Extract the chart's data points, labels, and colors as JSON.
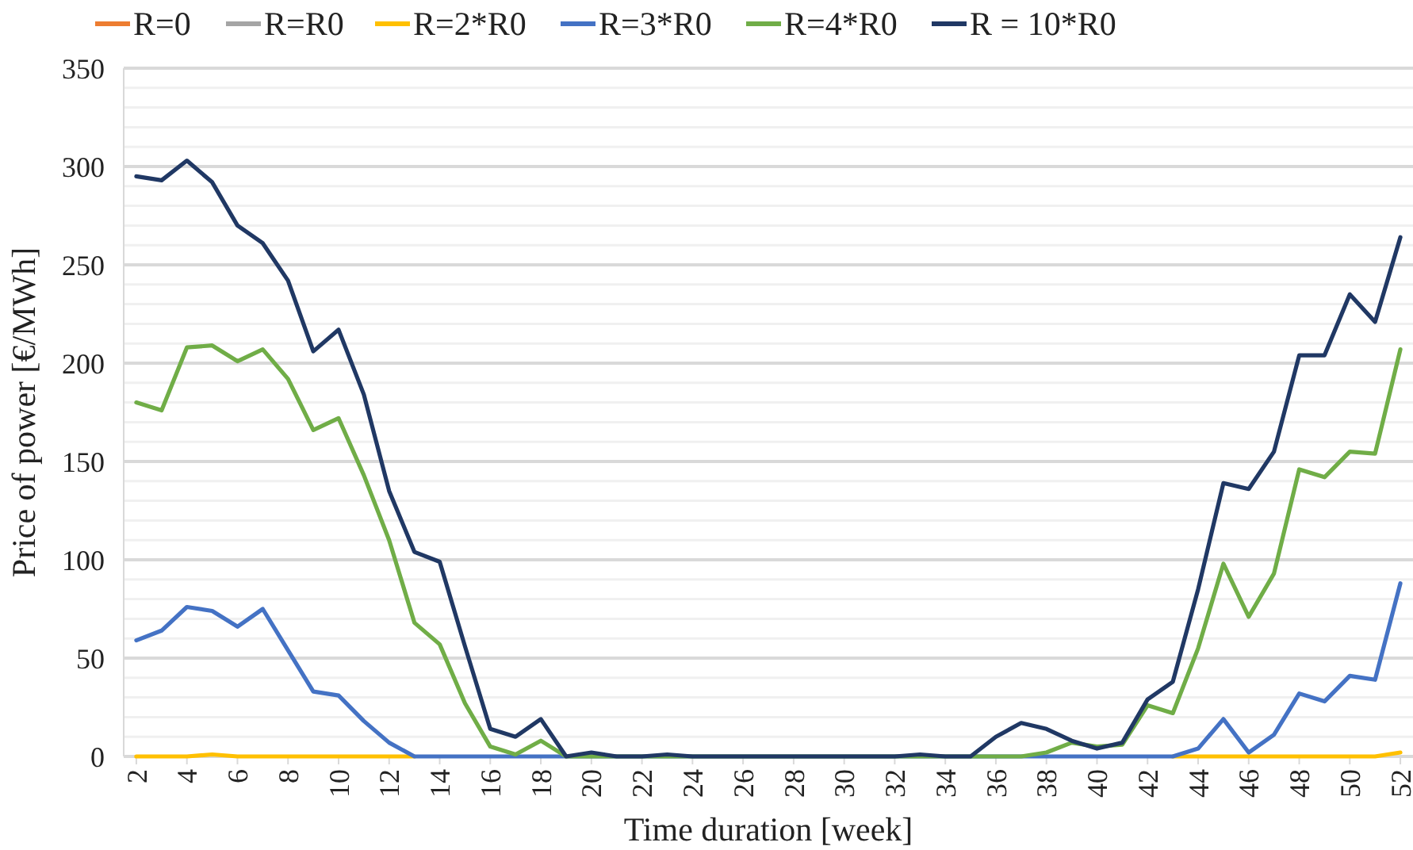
{
  "chart_data": {
    "type": "line",
    "xlabel": "Time duration [week]",
    "ylabel": "Price of power [€/MWh]",
    "x": [
      2,
      3,
      4,
      5,
      6,
      7,
      8,
      9,
      10,
      11,
      12,
      13,
      14,
      15,
      16,
      17,
      18,
      19,
      20,
      21,
      22,
      23,
      24,
      25,
      26,
      27,
      28,
      29,
      30,
      31,
      32,
      33,
      34,
      35,
      36,
      37,
      38,
      39,
      40,
      41,
      42,
      43,
      44,
      45,
      46,
      47,
      48,
      49,
      50,
      51,
      52
    ],
    "xlim": [
      1.5,
      52.5
    ],
    "xticks": [
      2,
      4,
      6,
      8,
      10,
      12,
      14,
      16,
      18,
      20,
      22,
      24,
      26,
      28,
      30,
      32,
      34,
      36,
      38,
      40,
      42,
      44,
      46,
      48,
      50,
      52
    ],
    "ylim": [
      0,
      350
    ],
    "yticks": [
      0,
      {
        "value": 10,
        "label": null
      },
      {
        "value": 20,
        "label": null
      },
      {
        "value": 30,
        "label": null
      },
      {
        "value": 40,
        "label": null
      },
      50,
      {
        "value": 60,
        "label": null
      },
      {
        "value": 70,
        "label": null
      },
      {
        "value": 80,
        "label": null
      },
      {
        "value": 90,
        "label": null
      },
      100,
      {
        "value": 110,
        "label": null
      },
      {
        "value": 120,
        "label": null
      },
      {
        "value": 130,
        "label": null
      },
      {
        "value": 140,
        "label": null
      },
      150,
      {
        "value": 160,
        "label": null
      },
      {
        "value": 170,
        "label": null
      },
      {
        "value": 180,
        "label": null
      },
      {
        "value": 190,
        "label": null
      },
      200,
      {
        "value": 210,
        "label": null
      },
      {
        "value": 220,
        "label": null
      },
      {
        "value": 230,
        "label": null
      },
      {
        "value": 240,
        "label": null
      },
      250,
      {
        "value": 260,
        "label": null
      },
      {
        "value": 270,
        "label": null
      },
      {
        "value": 280,
        "label": null
      },
      {
        "value": 290,
        "label": null
      },
      300,
      {
        "value": 310,
        "label": null
      },
      {
        "value": 320,
        "label": null
      },
      {
        "value": 330,
        "label": null
      },
      {
        "value": 340,
        "label": null
      },
      350
    ],
    "grid": "y",
    "legend": "top",
    "marker": "none",
    "line_style": "solid",
    "series": [
      {
        "name": "R=0",
        "color": "#ed7d31",
        "values": [
          null,
          null,
          null,
          null,
          null,
          null,
          null,
          null,
          null,
          null,
          null,
          null,
          null,
          null,
          null,
          null,
          null,
          null,
          null,
          null,
          null,
          null,
          null,
          null,
          null,
          null,
          null,
          null,
          null,
          null,
          null,
          null,
          null,
          null,
          null,
          null,
          null,
          null,
          null,
          null,
          null,
          null,
          null,
          null,
          null,
          null,
          null,
          null,
          null,
          null,
          null
        ]
      },
      {
        "name": "R=R0",
        "color": "#a5a5a5",
        "values": [
          null,
          null,
          null,
          null,
          null,
          null,
          null,
          null,
          null,
          null,
          null,
          null,
          null,
          null,
          null,
          null,
          null,
          null,
          null,
          null,
          null,
          null,
          null,
          null,
          null,
          null,
          null,
          null,
          null,
          null,
          null,
          null,
          null,
          null,
          null,
          null,
          null,
          null,
          null,
          null,
          null,
          null,
          null,
          null,
          null,
          null,
          null,
          null,
          null,
          null,
          null
        ]
      },
      {
        "name": "R=2*R0",
        "color": "#ffc000",
        "values": [
          0,
          0,
          0,
          1,
          0,
          0,
          0,
          0,
          0,
          0,
          0,
          0,
          null,
          null,
          null,
          null,
          null,
          null,
          null,
          null,
          null,
          null,
          null,
          null,
          null,
          null,
          null,
          null,
          null,
          null,
          null,
          null,
          null,
          null,
          null,
          null,
          null,
          null,
          null,
          null,
          null,
          0,
          0,
          0,
          0,
          0,
          0,
          0,
          0,
          0,
          2
        ]
      },
      {
        "name": "R=3*R0",
        "color": "#4472c4",
        "values": [
          59,
          64,
          76,
          74,
          66,
          75,
          54,
          33,
          31,
          18,
          7,
          0,
          0,
          0,
          0,
          0,
          0,
          0,
          0,
          0,
          0,
          0,
          0,
          0,
          0,
          0,
          0,
          0,
          0,
          0,
          0,
          0,
          0,
          0,
          0,
          0,
          0,
          0,
          0,
          0,
          0,
          0,
          4,
          19,
          2,
          11,
          32,
          28,
          41,
          39,
          88
        ]
      },
      {
        "name": "R=4*R0",
        "color": "#70ad47",
        "values": [
          180,
          176,
          208,
          209,
          201,
          207,
          192,
          166,
          172,
          143,
          110,
          68,
          57,
          27,
          5,
          1,
          8,
          0,
          0,
          0,
          0,
          0,
          0,
          0,
          0,
          0,
          0,
          0,
          0,
          0,
          0,
          0,
          0,
          0,
          0,
          0,
          2,
          7,
          5,
          6,
          26,
          22,
          55,
          98,
          71,
          93,
          146,
          142,
          155,
          154,
          207
        ]
      },
      {
        "name": "R = 10*R0",
        "color": "#203864",
        "values": [
          295,
          293,
          303,
          292,
          270,
          261,
          242,
          206,
          217,
          184,
          135,
          104,
          99,
          56,
          14,
          10,
          19,
          0,
          2,
          0,
          0,
          1,
          0,
          0,
          0,
          0,
          0,
          0,
          0,
          0,
          0,
          1,
          0,
          0,
          10,
          17,
          14,
          8,
          4,
          7,
          29,
          38,
          85,
          139,
          136,
          155,
          204,
          204,
          235,
          221,
          264
        ]
      }
    ]
  }
}
